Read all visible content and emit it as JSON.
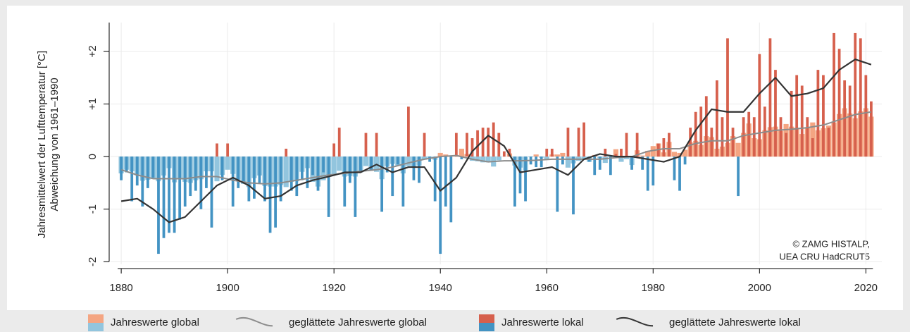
{
  "chart_data": {
    "type": "bar",
    "ylabel": [
      "Jahresmittelwert der Lufttemperatur [°C]",
      "Abweichung von 1961–1990"
    ],
    "annotation": [
      "© ZAMG HISTALP,",
      "UEA CRU HadCRUT5"
    ],
    "x": [
      1880,
      1881,
      1882,
      1883,
      1884,
      1885,
      1886,
      1887,
      1888,
      1889,
      1890,
      1891,
      1892,
      1893,
      1894,
      1895,
      1896,
      1897,
      1898,
      1899,
      1900,
      1901,
      1902,
      1903,
      1904,
      1905,
      1906,
      1907,
      1908,
      1909,
      1910,
      1911,
      1912,
      1913,
      1914,
      1915,
      1916,
      1917,
      1918,
      1919,
      1920,
      1921,
      1922,
      1923,
      1924,
      1925,
      1926,
      1927,
      1928,
      1929,
      1930,
      1931,
      1932,
      1933,
      1934,
      1935,
      1936,
      1937,
      1938,
      1939,
      1940,
      1941,
      1942,
      1943,
      1944,
      1945,
      1946,
      1947,
      1948,
      1949,
      1950,
      1951,
      1952,
      1953,
      1954,
      1955,
      1956,
      1957,
      1958,
      1959,
      1960,
      1961,
      1962,
      1963,
      1964,
      1965,
      1966,
      1967,
      1968,
      1969,
      1970,
      1971,
      1972,
      1973,
      1974,
      1975,
      1976,
      1977,
      1978,
      1979,
      1980,
      1981,
      1982,
      1983,
      1984,
      1985,
      1986,
      1987,
      1988,
      1989,
      1990,
      1991,
      1992,
      1993,
      1994,
      1995,
      1996,
      1997,
      1998,
      1999,
      2000,
      2001,
      2002,
      2003,
      2004,
      2005,
      2006,
      2007,
      2008,
      2009,
      2010,
      2011,
      2012,
      2013,
      2014,
      2015,
      2016,
      2017,
      2018,
      2019,
      2020,
      2021
    ],
    "series": [
      {
        "name": "Jahreswerte global",
        "type": "bar",
        "color": "#f4a582",
        "color_negative": "#92c5de",
        "values": [
          -0.32,
          -0.25,
          -0.28,
          -0.36,
          -0.46,
          -0.44,
          -0.41,
          -0.47,
          -0.36,
          -0.22,
          -0.49,
          -0.41,
          -0.48,
          -0.5,
          -0.45,
          -0.43,
          -0.28,
          -0.28,
          -0.47,
          -0.35,
          -0.25,
          -0.33,
          -0.44,
          -0.52,
          -0.58,
          -0.41,
          -0.36,
          -0.56,
          -0.57,
          -0.57,
          -0.54,
          -0.58,
          -0.48,
          -0.47,
          -0.29,
          -0.22,
          -0.48,
          -0.57,
          -0.45,
          -0.35,
          -0.34,
          -0.27,
          -0.38,
          -0.37,
          -0.38,
          -0.3,
          -0.18,
          -0.27,
          -0.29,
          -0.43,
          -0.18,
          -0.14,
          -0.17,
          -0.32,
          -0.18,
          -0.21,
          -0.17,
          -0.06,
          -0.03,
          -0.06,
          0.07,
          0.04,
          0.02,
          0.03,
          0.15,
          0.05,
          -0.08,
          -0.09,
          -0.11,
          -0.11,
          -0.19,
          -0.07,
          0.0,
          0.06,
          -0.17,
          -0.21,
          -0.26,
          -0.01,
          0.04,
          -0.02,
          -0.05,
          0.04,
          0.04,
          0.07,
          -0.21,
          -0.13,
          -0.08,
          -0.04,
          -0.1,
          0.03,
          -0.03,
          -0.12,
          -0.01,
          0.14,
          -0.1,
          -0.05,
          -0.16,
          0.12,
          0.02,
          0.11,
          0.2,
          0.25,
          0.08,
          0.28,
          0.09,
          0.07,
          0.13,
          0.27,
          0.3,
          0.22,
          0.39,
          0.37,
          0.15,
          0.19,
          0.26,
          0.39,
          0.26,
          0.45,
          0.63,
          0.35,
          0.33,
          0.5,
          0.56,
          0.57,
          0.49,
          0.62,
          0.57,
          0.55,
          0.43,
          0.56,
          0.65,
          0.5,
          0.54,
          0.59,
          0.65,
          0.81,
          0.92,
          0.82,
          0.73,
          0.86,
          0.92,
          0.76
        ]
      },
      {
        "name": "Jahreswerte lokal",
        "type": "bar",
        "color": "#d6604d",
        "color_negative": "#4393c3",
        "values": [
          -0.45,
          -0.3,
          -0.85,
          -0.55,
          -0.95,
          -0.6,
          -0.4,
          -1.85,
          -1.55,
          -1.45,
          -1.45,
          -1.2,
          -0.95,
          -0.75,
          -0.65,
          -1.0,
          -0.6,
          -1.35,
          0.25,
          -0.45,
          0.25,
          -0.95,
          -0.6,
          -0.5,
          -0.85,
          -0.8,
          -0.5,
          -0.85,
          -1.45,
          -1.35,
          -0.85,
          0.15,
          -0.65,
          -0.75,
          -0.45,
          -0.6,
          -0.35,
          -0.65,
          -0.3,
          -1.15,
          0.25,
          0.55,
          -0.95,
          -0.5,
          -1.15,
          -0.3,
          0.45,
          -0.25,
          0.45,
          -1.05,
          -0.3,
          -0.75,
          -0.15,
          -0.95,
          0.95,
          -0.45,
          -0.5,
          0.45,
          -0.1,
          -0.85,
          -1.85,
          -0.95,
          -1.25,
          0.45,
          -0.05,
          0.45,
          0.35,
          0.5,
          0.55,
          0.55,
          0.65,
          0.45,
          0.1,
          0.15,
          -0.95,
          -0.7,
          -0.85,
          -0.15,
          -0.2,
          -0.2,
          0.15,
          0.15,
          -1.05,
          -0.15,
          0.55,
          -1.1,
          0.55,
          0.65,
          -0.1,
          -0.35,
          -0.25,
          0.15,
          -0.35,
          0.05,
          0.15,
          0.45,
          -0.25,
          0.45,
          -0.25,
          -0.65,
          -0.55,
          0.25,
          0.35,
          0.45,
          -0.45,
          -0.65,
          -0.15,
          0.55,
          0.85,
          0.95,
          1.15,
          0.55,
          1.45,
          0.75,
          2.25,
          0.55,
          -0.75,
          0.75,
          0.85,
          0.75,
          1.95,
          0.95,
          2.25,
          1.65,
          0.75,
          0.45,
          1.25,
          1.55,
          1.35,
          0.75,
          0.35,
          1.65,
          1.55,
          0.55,
          2.35,
          2.05,
          1.45,
          1.35,
          2.35,
          2.25,
          1.55,
          1.05
        ]
      },
      {
        "name": "geglättete Jahreswerte global",
        "type": "line",
        "color": "#8c8c8c",
        "x": [
          1880,
          1883,
          1886,
          1889,
          1892,
          1895,
          1898,
          1901,
          1904,
          1907,
          1910,
          1913,
          1916,
          1919,
          1922,
          1925,
          1928,
          1931,
          1934,
          1937,
          1940,
          1943,
          1946,
          1949,
          1952,
          1955,
          1958,
          1961,
          1964,
          1967,
          1970,
          1973,
          1976,
          1979,
          1982,
          1985,
          1988,
          1991,
          1994,
          1997,
          2000,
          2003,
          2006,
          2009,
          2012,
          2015,
          2018,
          2021
        ],
        "values": [
          -0.25,
          -0.35,
          -0.42,
          -0.42,
          -0.42,
          -0.38,
          -0.38,
          -0.45,
          -0.5,
          -0.52,
          -0.5,
          -0.45,
          -0.4,
          -0.35,
          -0.32,
          -0.28,
          -0.25,
          -0.2,
          -0.12,
          -0.05,
          0.0,
          0.02,
          -0.05,
          -0.1,
          -0.08,
          -0.08,
          -0.07,
          -0.05,
          -0.05,
          -0.05,
          -0.05,
          -0.02,
          0.0,
          0.1,
          0.15,
          0.15,
          0.25,
          0.3,
          0.3,
          0.4,
          0.45,
          0.5,
          0.52,
          0.55,
          0.6,
          0.7,
          0.8,
          0.85
        ]
      },
      {
        "name": "geglättete Jahreswerte lokal",
        "type": "line",
        "color": "#333333",
        "x": [
          1880,
          1883,
          1886,
          1889,
          1892,
          1895,
          1898,
          1901,
          1904,
          1907,
          1910,
          1913,
          1916,
          1919,
          1922,
          1925,
          1928,
          1931,
          1934,
          1937,
          1940,
          1943,
          1946,
          1949,
          1952,
          1955,
          1958,
          1961,
          1964,
          1967,
          1970,
          1973,
          1976,
          1979,
          1982,
          1985,
          1988,
          1991,
          1994,
          1997,
          2000,
          2003,
          2006,
          2009,
          2012,
          2015,
          2018,
          2021
        ],
        "values": [
          -0.85,
          -0.8,
          -1.0,
          -1.25,
          -1.15,
          -0.85,
          -0.55,
          -0.4,
          -0.55,
          -0.8,
          -0.75,
          -0.55,
          -0.45,
          -0.38,
          -0.3,
          -0.3,
          -0.15,
          -0.3,
          -0.2,
          -0.2,
          -0.65,
          -0.4,
          0.1,
          0.4,
          0.2,
          -0.3,
          -0.25,
          -0.2,
          -0.35,
          -0.05,
          0.05,
          0.0,
          0.0,
          -0.05,
          -0.1,
          0.0,
          0.5,
          0.9,
          0.85,
          0.85,
          1.2,
          1.5,
          1.15,
          1.2,
          1.3,
          1.65,
          1.85,
          1.75
        ]
      }
    ],
    "xlim": [
      1878,
      2023
    ],
    "xticks": [
      1880,
      1900,
      1920,
      1940,
      1960,
      1980,
      2000,
      2020
    ],
    "ylim": [
      -2.05,
      2.55
    ],
    "yticks": [
      {
        "value": 2,
        "label": "+2"
      },
      {
        "value": 1,
        "label": "+1"
      },
      0,
      -1,
      -2
    ],
    "grid": true
  }
}
